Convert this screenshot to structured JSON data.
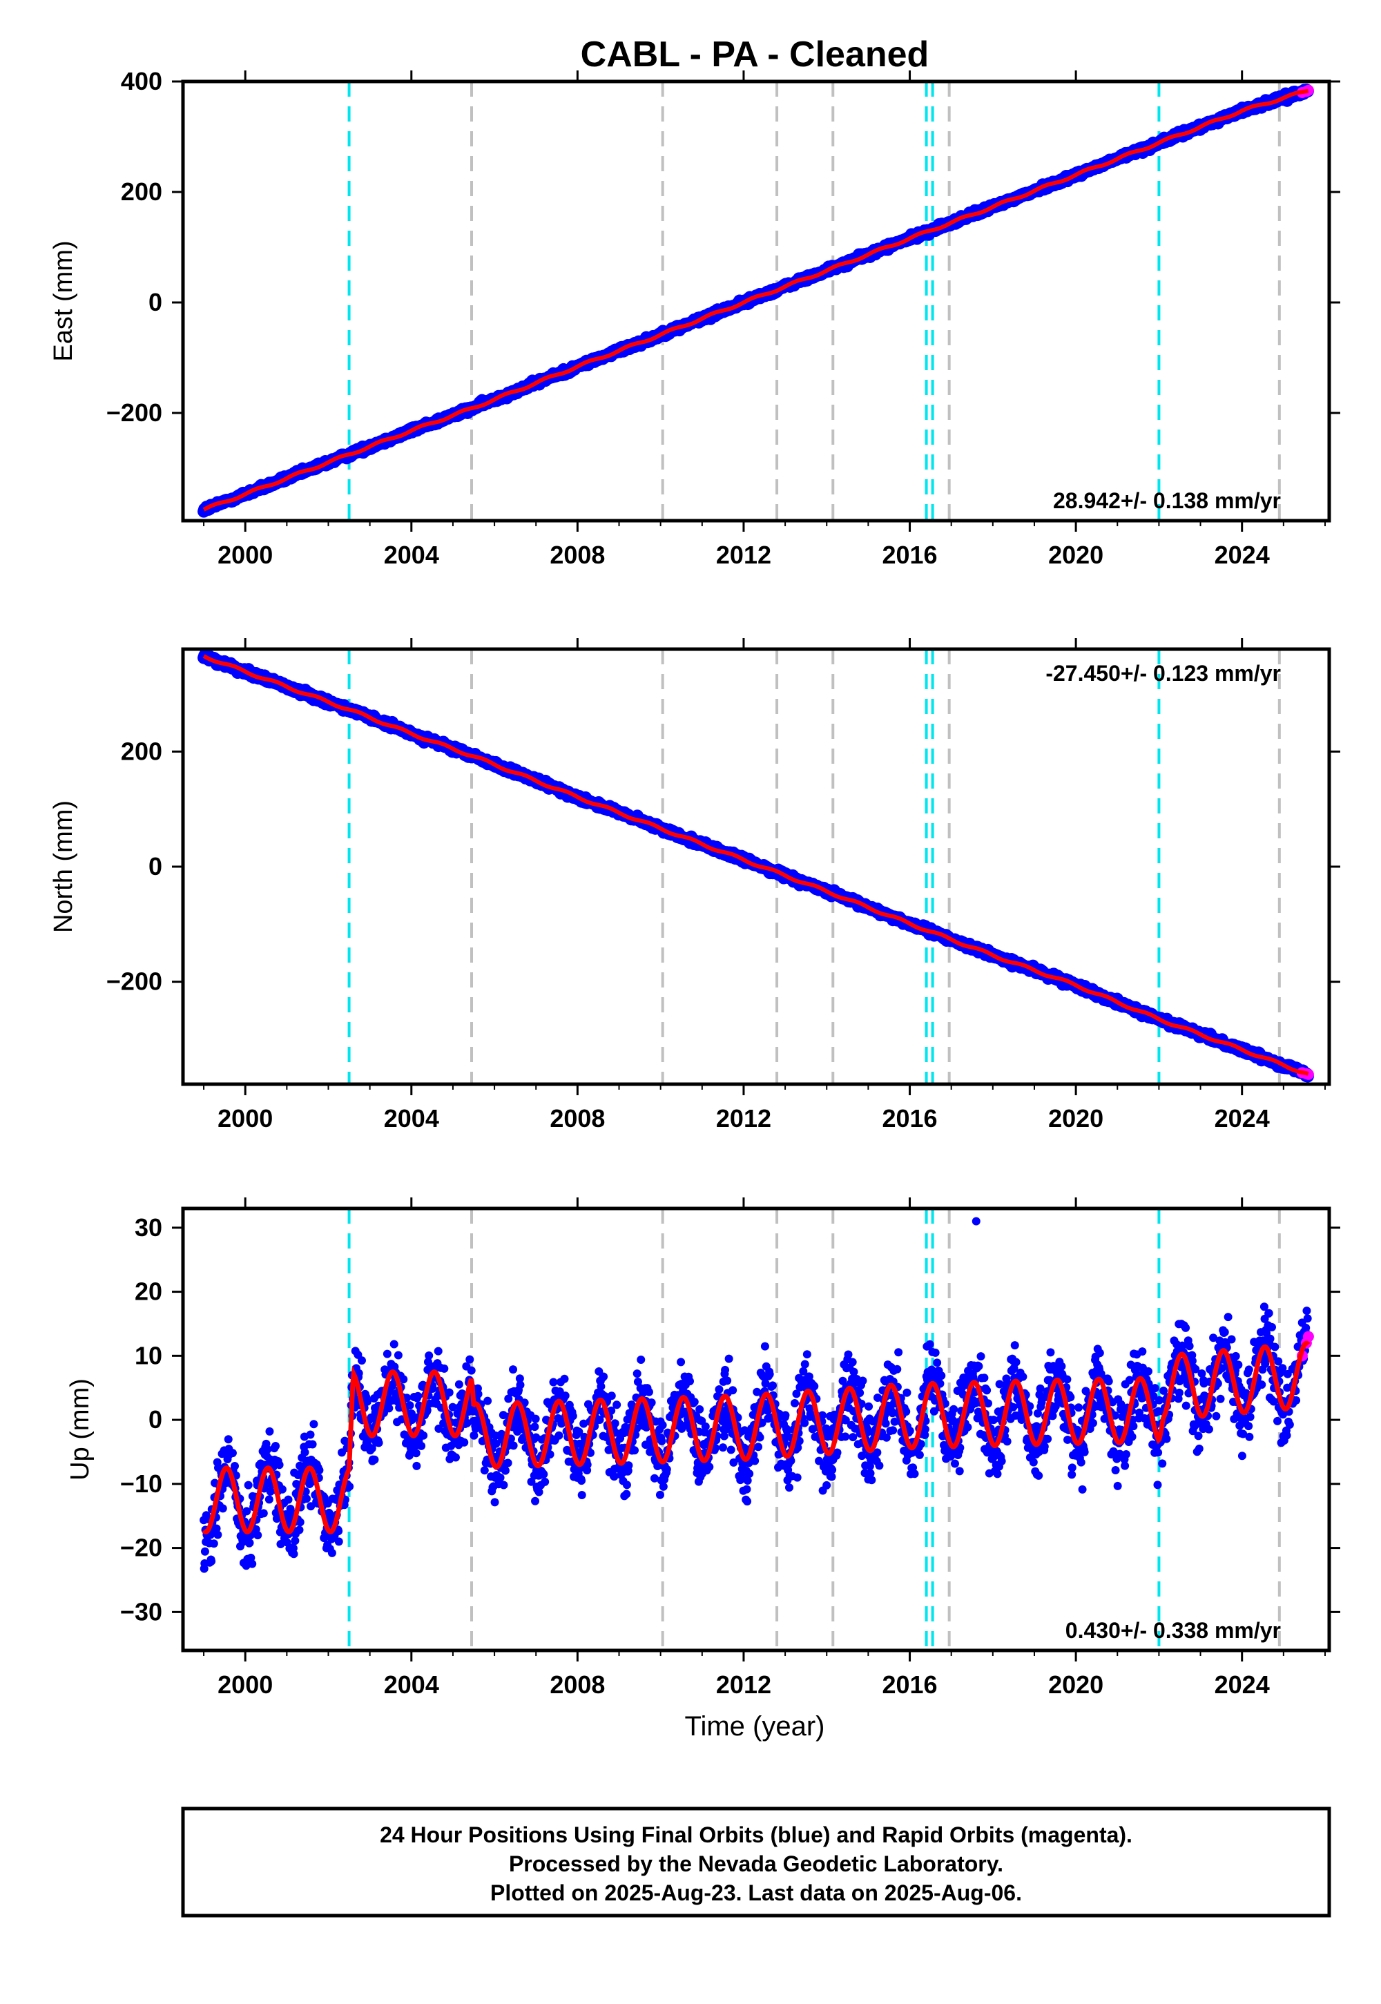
{
  "title": "CABL  - PA - Cleaned",
  "xlabel": "Time (year)",
  "x_ticks": [
    2000,
    2004,
    2008,
    2012,
    2016,
    2020,
    2024
  ],
  "xlim": [
    1998.5,
    2026.1
  ],
  "colors": {
    "final_orbits": "#0000ff",
    "rapid_orbits": "#ff00ff",
    "model": "#ff0000",
    "equipment_change": "#00e5ee",
    "other_event": "#c0c0c0"
  },
  "offsets": {
    "cyan": [
      2002.5,
      2016.4,
      2016.55,
      2022.0
    ],
    "gray": [
      2005.45,
      2010.05,
      2012.8,
      2014.15,
      2016.95,
      2024.9
    ]
  },
  "footer": {
    "line1": "24 Hour Positions Using Final Orbits (blue) and Rapid Orbits (magenta).",
    "line2": "Processed by the Nevada Geodetic Laboratory.",
    "line3": "Plotted on 2025-Aug-23. Last data on 2025-Aug-06."
  },
  "chart_data": [
    {
      "type": "scatter",
      "ylabel": "East (mm)",
      "rate": "28.942+/- 0.138 mm/yr",
      "rate_position": "bottom-right",
      "ylim": [
        -395,
        400
      ],
      "y_ticks": [
        400,
        200,
        0,
        -200
      ],
      "x": [
        1999.0,
        2000.0,
        2002.5,
        2004.0,
        2005.45,
        2008.0,
        2010.05,
        2012.0,
        2014.15,
        2016.0,
        2018.0,
        2020.0,
        2022.0,
        2024.0,
        2025.6
      ],
      "trend": [
        -375,
        -347,
        -275,
        -232,
        -192,
        -116,
        -57,
        0,
        62,
        116,
        173,
        231,
        289,
        347,
        384
      ],
      "rapid": {
        "x": [
          2025.45,
          2025.55,
          2025.6
        ],
        "y": [
          380,
          382,
          384
        ]
      }
    },
    {
      "type": "scatter",
      "ylabel": "North (mm)",
      "rate": "-27.450+/- 0.123 mm/yr",
      "rate_position": "top-right",
      "ylim": [
        -378,
        378
      ],
      "y_ticks": [
        200,
        0,
        -200
      ],
      "x": [
        1999.0,
        2000.0,
        2002.5,
        2004.0,
        2005.45,
        2008.0,
        2010.05,
        2012.0,
        2014.15,
        2016.0,
        2018.0,
        2020.0,
        2022.0,
        2024.0,
        2025.6
      ],
      "trend": [
        366,
        339,
        273,
        231,
        193,
        121,
        65,
        12,
        -47,
        -99,
        -154,
        -206,
        -265,
        -318,
        -361
      ],
      "rapid": {
        "x": [
          2025.45,
          2025.55,
          2025.6
        ],
        "y": [
          -358,
          -360,
          -361
        ]
      }
    },
    {
      "type": "scatter",
      "ylabel": "Up (mm)",
      "rate": "0.430+/- 0.338 mm/yr",
      "rate_position": "bottom-right",
      "ylim": [
        -36,
        33
      ],
      "y_ticks": [
        30,
        20,
        10,
        0,
        -10,
        -20,
        -30
      ],
      "x": [
        1999.0,
        2002.5,
        2002.6,
        2005.45,
        2005.5,
        2008.0,
        2012.0,
        2016.0,
        2020.0,
        2022.0,
        2022.1,
        2025.6
      ],
      "trend": [
        -12.5,
        -12.5,
        2.5,
        2.5,
        -2.5,
        -2.0,
        -1.2,
        0.6,
        1.3,
        1.5,
        5.0,
        7.0
      ],
      "seasonal_amplitude": 5.0,
      "outlier": {
        "x": 2017.6,
        "y": 31
      },
      "rapid": {
        "x": [
          2025.45,
          2025.55,
          2025.6
        ],
        "y": [
          10,
          12,
          13
        ]
      }
    }
  ]
}
